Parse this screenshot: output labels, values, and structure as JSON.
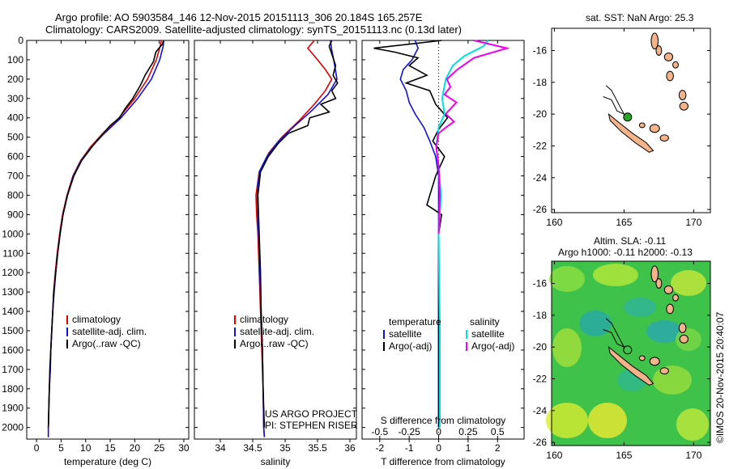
{
  "header": {
    "title_line1": "Argo profile: AO 5903584_146 12-Nov-2015 20151113_306 20.184S 165.257E",
    "title_line2": "Climatology: CARS2009. Satellite-adjusted climatology: synTS_20151113.nc (0.13d later)"
  },
  "colors": {
    "climatology": "#e00000",
    "satellite": "#1010e0",
    "argo": "#000000",
    "salinity_satellite": "#00e0e0",
    "salinity_argo": "#f000f0",
    "land": "#f5b38a",
    "float_marker": "#22aa22"
  },
  "chart_data": [
    {
      "name": "temperature",
      "type": "line",
      "xlabel": "temperature (deg C)",
      "ylabel": "",
      "xlim": [
        -2,
        31
      ],
      "ylim": [
        2060,
        0
      ],
      "xticks": [
        0,
        5,
        10,
        15,
        20,
        25,
        30
      ],
      "yticks": [
        0,
        100,
        200,
        300,
        400,
        500,
        600,
        700,
        800,
        900,
        1000,
        1100,
        1200,
        1300,
        1400,
        1500,
        1600,
        1700,
        1800,
        1900,
        2000
      ],
      "legend": {
        "position": "lower-left",
        "entries": [
          "climatology",
          "satellite-adj. clim.",
          "Argo(..raw -QC)"
        ]
      },
      "series": [
        {
          "name": "climatology",
          "color": "#e00000",
          "points": [
            [
              25.4,
              0
            ],
            [
              25.2,
              30
            ],
            [
              24.4,
              100
            ],
            [
              22.6,
              200
            ],
            [
              20.0,
              300
            ],
            [
              16.8,
              400
            ],
            [
              13.5,
              480
            ],
            [
              11.0,
              550
            ],
            [
              9.0,
              620
            ],
            [
              7.4,
              700
            ],
            [
              6.2,
              800
            ],
            [
              5.3,
              900
            ],
            [
              4.7,
              1000
            ],
            [
              4.2,
              1100
            ],
            [
              3.8,
              1200
            ],
            [
              3.5,
              1300
            ],
            [
              3.3,
              1400
            ],
            [
              3.1,
              1500
            ],
            [
              2.9,
              1600
            ],
            [
              2.8,
              1700
            ],
            [
              2.6,
              1800
            ],
            [
              2.5,
              1900
            ],
            [
              2.4,
              2000
            ],
            [
              2.4,
              2050
            ]
          ]
        },
        {
          "name": "satellite-adj. clim.",
          "color": "#1010e0",
          "points": [
            [
              25.9,
              0
            ],
            [
              25.8,
              30
            ],
            [
              25.1,
              100
            ],
            [
              23.4,
              200
            ],
            [
              20.6,
              300
            ],
            [
              17.2,
              400
            ],
            [
              13.8,
              480
            ],
            [
              11.2,
              550
            ],
            [
              9.1,
              620
            ],
            [
              7.5,
              700
            ],
            [
              6.3,
              800
            ],
            [
              5.4,
              900
            ],
            [
              4.8,
              1000
            ],
            [
              4.3,
              1100
            ],
            [
              3.9,
              1200
            ],
            [
              3.6,
              1300
            ],
            [
              3.3,
              1400
            ],
            [
              3.1,
              1500
            ],
            [
              2.9,
              1600
            ],
            [
              2.8,
              1700
            ],
            [
              2.6,
              1800
            ],
            [
              2.5,
              1900
            ],
            [
              2.4,
              2000
            ],
            [
              2.4,
              2050
            ]
          ]
        },
        {
          "name": "Argo(..raw -QC)",
          "color": "#000000",
          "points": [
            [
              25.9,
              0
            ],
            [
              25.6,
              20
            ],
            [
              24.3,
              60
            ],
            [
              23.8,
              110
            ],
            [
              22.1,
              180
            ],
            [
              21.2,
              230
            ],
            [
              19.6,
              300
            ],
            [
              18.1,
              350
            ],
            [
              16.9,
              400
            ],
            [
              15.0,
              440
            ],
            [
              13.6,
              480
            ],
            [
              11.3,
              550
            ],
            [
              9.2,
              620
            ],
            [
              7.6,
              700
            ],
            [
              6.3,
              800
            ],
            [
              5.4,
              900
            ],
            [
              4.8,
              1000
            ],
            [
              4.3,
              1100
            ],
            [
              3.9,
              1200
            ],
            [
              3.5,
              1300
            ],
            [
              3.3,
              1400
            ],
            [
              3.1,
              1500
            ],
            [
              2.9,
              1600
            ],
            [
              2.7,
              1700
            ],
            [
              2.6,
              1800
            ],
            [
              2.5,
              1900
            ],
            [
              2.4,
              2000
            ]
          ]
        }
      ]
    },
    {
      "name": "salinity",
      "type": "line",
      "xlabel": "salinity",
      "ylabel": "",
      "xlim": [
        33.6,
        36.1
      ],
      "ylim": [
        2060,
        0
      ],
      "xticks": [
        34,
        34.5,
        35,
        35.5,
        36
      ],
      "legend": {
        "position": "lower-left",
        "entries": [
          "climatology",
          "satellite-adj. clim.",
          "Argo(..raw -QC)"
        ]
      },
      "annotations": [
        "US ARGO PROJECT",
        "PI: STEPHEN RISER"
      ],
      "series": [
        {
          "name": "climatology",
          "color": "#e00000",
          "points": [
            [
              35.45,
              0
            ],
            [
              35.35,
              40
            ],
            [
              35.5,
              100
            ],
            [
              35.62,
              150
            ],
            [
              35.72,
              200
            ],
            [
              35.62,
              260
            ],
            [
              35.45,
              330
            ],
            [
              35.2,
              420
            ],
            [
              34.95,
              500
            ],
            [
              34.75,
              580
            ],
            [
              34.6,
              680
            ],
            [
              34.55,
              800
            ],
            [
              34.56,
              900
            ],
            [
              34.58,
              1000
            ],
            [
              34.6,
              1200
            ],
            [
              34.62,
              1400
            ],
            [
              34.64,
              1600
            ],
            [
              34.66,
              1800
            ],
            [
              34.67,
              2000
            ],
            [
              34.68,
              2050
            ]
          ]
        },
        {
          "name": "satellite-adj. clim.",
          "color": "#1010e0",
          "points": [
            [
              35.7,
              0
            ],
            [
              35.72,
              50
            ],
            [
              35.75,
              100
            ],
            [
              35.8,
              200
            ],
            [
              35.66,
              280
            ],
            [
              35.42,
              360
            ],
            [
              35.12,
              450
            ],
            [
              34.9,
              520
            ],
            [
              34.72,
              600
            ],
            [
              34.6,
              680
            ],
            [
              34.57,
              800
            ],
            [
              34.58,
              900
            ],
            [
              34.59,
              1000
            ],
            [
              34.61,
              1200
            ],
            [
              34.63,
              1400
            ],
            [
              34.65,
              1600
            ],
            [
              34.66,
              1800
            ],
            [
              34.67,
              2000
            ],
            [
              34.68,
              2050
            ]
          ]
        },
        {
          "name": "Argo(..raw -QC)",
          "color": "#000000",
          "points": [
            [
              35.72,
              0
            ],
            [
              35.68,
              30
            ],
            [
              35.73,
              80
            ],
            [
              35.78,
              130
            ],
            [
              35.74,
              180
            ],
            [
              35.81,
              220
            ],
            [
              35.72,
              260
            ],
            [
              35.78,
              300
            ],
            [
              35.55,
              330
            ],
            [
              35.68,
              370
            ],
            [
              35.38,
              400
            ],
            [
              35.35,
              440
            ],
            [
              35.05,
              480
            ],
            [
              34.9,
              530
            ],
            [
              34.74,
              600
            ],
            [
              34.62,
              680
            ],
            [
              34.58,
              800
            ],
            [
              34.59,
              900
            ],
            [
              34.6,
              1000
            ],
            [
              34.62,
              1200
            ],
            [
              34.63,
              1400
            ],
            [
              34.65,
              1600
            ],
            [
              34.66,
              1800
            ],
            [
              34.67,
              1900
            ],
            [
              34.68,
              2000
            ]
          ]
        }
      ]
    },
    {
      "name": "differences",
      "type": "line",
      "xlabel": "T difference from climatology",
      "xlabel_top": "S difference from climatology",
      "xlim_T": [
        -2.6,
        2.9
      ],
      "xticks_T": [
        -2,
        -1,
        0,
        1,
        2
      ],
      "xlim_S": [
        -0.65,
        0.725
      ],
      "xticks_S": [
        -0.5,
        -0.25,
        0,
        0.25,
        0.5
      ],
      "xticklabels_S": [
        "-0.5",
        "-0.25",
        "0",
        "0.25",
        "0.5"
      ],
      "ylim": [
        2060,
        0
      ],
      "legend": {
        "position": "lower",
        "groups": [
          {
            "title": "temperature",
            "entries": [
              "satellite",
              "Argo(-adj)"
            ]
          },
          {
            "title": "salinity",
            "entries": [
              "satellite",
              "Argo(-adj)"
            ]
          }
        ]
      },
      "series": [
        {
          "name": "temperature satellite",
          "color": "#1010e0",
          "points": [
            [
              -0.8,
              0
            ],
            [
              -0.7,
              40
            ],
            [
              -0.9,
              100
            ],
            [
              -1.2,
              150
            ],
            [
              -1.3,
              200
            ],
            [
              -1.1,
              260
            ],
            [
              -1.0,
              320
            ],
            [
              -0.8,
              380
            ],
            [
              -0.5,
              450
            ],
            [
              -0.3,
              520
            ],
            [
              -0.1,
              600
            ],
            [
              0.0,
              700
            ],
            [
              0.0,
              1000
            ],
            [
              0.0,
              2000
            ]
          ]
        },
        {
          "name": "temperature Argo(-adj)",
          "color": "#000000",
          "points": [
            [
              0.1,
              0
            ],
            [
              -2.2,
              40
            ],
            [
              -1.5,
              60
            ],
            [
              -0.7,
              90
            ],
            [
              -1.0,
              130
            ],
            [
              -0.4,
              180
            ],
            [
              -1.1,
              220
            ],
            [
              -0.3,
              260
            ],
            [
              -0.1,
              330
            ],
            [
              0.3,
              400
            ],
            [
              0.0,
              460
            ],
            [
              -0.2,
              520
            ],
            [
              0.2,
              600
            ],
            [
              -0.1,
              700
            ],
            [
              -0.4,
              850
            ],
            [
              0.1,
              900
            ],
            [
              0.0,
              1000
            ],
            [
              0.0,
              1500
            ],
            [
              0.0,
              2000
            ]
          ]
        },
        {
          "name": "salinity satellite",
          "color": "#00e0e0",
          "points": [
            [
              0.42,
              0
            ],
            [
              0.38,
              30
            ],
            [
              0.22,
              80
            ],
            [
              0.12,
              130
            ],
            [
              0.06,
              200
            ],
            [
              0.03,
              300
            ],
            [
              0.05,
              380
            ],
            [
              0.0,
              450
            ],
            [
              -0.02,
              550
            ],
            [
              0.0,
              650
            ],
            [
              0.02,
              800
            ],
            [
              0.0,
              1000
            ],
            [
              0.01,
              1500
            ],
            [
              0.01,
              2000
            ]
          ]
        },
        {
          "name": "salinity Argo(-adj)",
          "color": "#f000f0",
          "points": [
            [
              0.3,
              0
            ],
            [
              0.58,
              40
            ],
            [
              0.3,
              90
            ],
            [
              0.16,
              150
            ],
            [
              0.07,
              200
            ],
            [
              0.1,
              240
            ],
            [
              0.05,
              280
            ],
            [
              0.15,
              320
            ],
            [
              0.06,
              380
            ],
            [
              0.13,
              420
            ],
            [
              0.06,
              450
            ],
            [
              0.0,
              480
            ],
            [
              -0.02,
              550
            ],
            [
              0.0,
              650
            ],
            [
              0.01,
              800
            ],
            [
              0.0,
              1000
            ]
          ]
        }
      ]
    },
    {
      "name": "sst_map",
      "type": "map",
      "title": "sat. SST: NaN Argo: 25.3",
      "xlim": [
        159.8,
        171.2
      ],
      "ylim": [
        -26.2,
        -14.6
      ],
      "xticks": [
        160,
        165,
        170
      ],
      "yticks": [
        -16,
        -18,
        -20,
        -22,
        -24,
        -26
      ],
      "float_position": [
        165.257,
        -20.184
      ]
    },
    {
      "name": "sla_map",
      "type": "map",
      "title_line1": "Altim. SLA: -0.11",
      "title_line2": "Argo h1000: -0.11 h2000: -0.13",
      "xlim": [
        159.8,
        171.2
      ],
      "ylim": [
        -26.2,
        -14.6
      ],
      "xticks": [
        160,
        165,
        170
      ],
      "yticks": [
        -16,
        -18,
        -20,
        -22,
        -24,
        -26
      ],
      "float_position": [
        165.257,
        -20.184
      ]
    }
  ],
  "credit": "©IMOS 20-Nov-2015 20:40:07"
}
